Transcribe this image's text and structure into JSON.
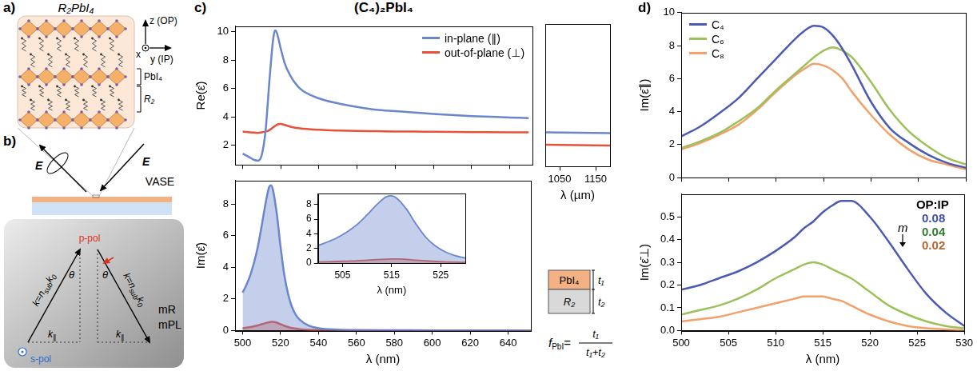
{
  "panels": {
    "a": "a)",
    "b": "b)",
    "c": "c)",
    "d": "d)"
  },
  "diagram": {
    "structure": {
      "title": "R₂PbI₄",
      "axis_z": "z (OP)",
      "axis_x": "x",
      "axis_y": "y (IP)",
      "inorganic_layer": "PbI₄",
      "organic_layer": "R₂"
    },
    "setup": {
      "field": "E",
      "method": "VASE",
      "p_pol": "p-pol",
      "s_pol": "s-pol",
      "wavevector": {
        "text": "k=n",
        "sub": "sub",
        "text2": "k",
        "sub2": "0"
      },
      "angle": "θ",
      "k_parallel": {
        "text": "k",
        "sub": "∥"
      },
      "micro_methods": [
        "mR",
        "mPL"
      ]
    },
    "layer_model": {
      "top": "PbI₄",
      "bottom": "R₂",
      "t_top": "t₁",
      "t_bottom": "t₂",
      "fraction": {
        "symbol": "f",
        "subscript": "PbI",
        "relation": "=",
        "numerator": "t₁",
        "denominator": "t₁+t₂"
      }
    }
  },
  "chart_data": [
    {
      "type": "line",
      "title": "(C₄)₂PbI₄",
      "x": [
        500,
        502,
        504,
        506,
        508,
        510,
        512,
        514,
        516,
        517,
        518,
        520,
        522,
        525,
        530,
        540,
        550,
        560,
        570,
        580,
        590,
        600,
        620,
        640,
        650
      ],
      "series": [
        {
          "name": "in-plane (∥)",
          "color": "#6a86cc",
          "values": [
            1.4,
            1.25,
            1.1,
            0.95,
            0.9,
            1.3,
            3.0,
            6.5,
            9.5,
            10.1,
            9.9,
            8.8,
            7.8,
            6.9,
            6.0,
            5.3,
            4.95,
            4.7,
            4.5,
            4.4,
            4.3,
            4.2,
            4.05,
            3.95,
            3.9
          ]
        },
        {
          "name": "out-of-plane (⊥)",
          "color": "#e8503a",
          "values": [
            2.95,
            2.93,
            2.9,
            2.88,
            2.86,
            2.9,
            2.95,
            3.05,
            3.25,
            3.35,
            3.45,
            3.5,
            3.42,
            3.3,
            3.18,
            3.08,
            3.03,
            3.0,
            2.98,
            2.96,
            2.95,
            2.94,
            2.92,
            2.9,
            2.9
          ]
        }
      ],
      "xlim": [
        496,
        652
      ],
      "ylim": [
        0.6,
        10.4
      ],
      "xticks": [
        500,
        520,
        540,
        560,
        580,
        600,
        620,
        640
      ],
      "yticks": [
        2,
        4,
        6,
        8,
        10
      ],
      "y_label": "Re(ε̄)",
      "tick_labels": "y",
      "grid": false,
      "legend": "top-right"
    },
    {
      "type": "line",
      "x": [
        1010,
        1190
      ],
      "series": [
        {
          "color": "#6a86cc",
          "values": [
            2.95,
            2.9
          ]
        },
        {
          "color": "#e8503a",
          "values": [
            2.1,
            2.05
          ]
        }
      ],
      "xlim": [
        1010,
        1190
      ],
      "ylim": [
        0.6,
        10.4
      ],
      "xticks": [
        1050,
        1150
      ],
      "x_label": "λ (µm)",
      "tick_labels": "x",
      "grid": false
    },
    {
      "type": "line",
      "x": [
        500,
        502,
        504,
        506,
        508,
        510,
        512,
        514,
        515,
        516,
        518,
        520,
        522,
        524,
        526,
        528,
        530,
        535,
        540,
        550,
        560,
        580,
        600,
        625,
        652
      ],
      "series": [
        {
          "color": "#6a86cc",
          "values": [
            2.4,
            2.9,
            3.5,
            4.3,
            5.3,
            6.6,
            8.0,
            9.1,
            9.2,
            8.9,
            7.4,
            5.3,
            3.5,
            2.3,
            1.5,
            1.0,
            0.7,
            0.3,
            0.15,
            0.06,
            0.03,
            0.02,
            0.01,
            0.01,
            0
          ]
        },
        {
          "color": "#e8503a",
          "values": [
            0.15,
            0.18,
            0.22,
            0.27,
            0.32,
            0.4,
            0.47,
            0.53,
            0.55,
            0.55,
            0.5,
            0.4,
            0.3,
            0.22,
            0.16,
            0.12,
            0.09,
            0.05,
            0.03,
            0.01,
            0.01,
            0,
            0,
            0,
            0
          ]
        }
      ],
      "xlim": [
        496,
        652
      ],
      "ylim": [
        0,
        9.5
      ],
      "xticks": [
        500,
        520,
        540,
        560,
        580,
        600,
        620,
        640
      ],
      "yticks": [
        0,
        2,
        4,
        6,
        8
      ],
      "x_label": "λ (nm)",
      "y_label": "Im(ε̄)",
      "grid": false
    },
    {
      "type": "line",
      "x": [
        500,
        502,
        504,
        506,
        508,
        510,
        512,
        514,
        515,
        516,
        518,
        520,
        522,
        524,
        526,
        528,
        530
      ],
      "series": [
        {
          "color": "#6a86cc",
          "values": [
            2.4,
            2.9,
            3.5,
            4.3,
            5.3,
            6.6,
            8.0,
            9.1,
            9.2,
            8.9,
            7.4,
            5.3,
            3.5,
            2.3,
            1.5,
            1.0,
            0.7
          ]
        },
        {
          "color": "#e8503a",
          "values": [
            0.15,
            0.18,
            0.22,
            0.27,
            0.32,
            0.4,
            0.47,
            0.53,
            0.55,
            0.55,
            0.5,
            0.4,
            0.3,
            0.22,
            0.16,
            0.12,
            0.09
          ]
        }
      ],
      "xlim": [
        500,
        530
      ],
      "ylim": [
        0,
        9.5
      ],
      "xticks": [
        505,
        515,
        525
      ],
      "yticks": [
        0,
        2,
        4,
        6,
        8
      ],
      "x_label": "λ (nm)",
      "grid": false
    },
    {
      "type": "line",
      "x": [
        500,
        502,
        504,
        506,
        508,
        510,
        512,
        513,
        514,
        515,
        516,
        517,
        518,
        520,
        522,
        524,
        526,
        528,
        530
      ],
      "series": [
        {
          "name": "C₄",
          "color": "#4b5bb5",
          "values": [
            2.5,
            3.1,
            3.9,
            4.8,
            6.0,
            7.2,
            8.4,
            8.9,
            9.2,
            9.1,
            8.6,
            7.8,
            6.8,
            4.6,
            3.0,
            2.1,
            1.4,
            0.9,
            0.6
          ]
        },
        {
          "name": "C₆",
          "color": "#9cc05a",
          "values": [
            1.8,
            2.2,
            2.7,
            3.4,
            4.2,
            5.3,
            6.3,
            6.8,
            7.3,
            7.7,
            7.9,
            7.7,
            7.3,
            5.8,
            4.1,
            2.8,
            1.9,
            1.2,
            0.8
          ]
        },
        {
          "name": "C₈",
          "color": "#f3a06b",
          "values": [
            1.7,
            2.1,
            2.6,
            3.2,
            4.1,
            5.2,
            6.2,
            6.6,
            6.9,
            6.8,
            6.5,
            6.0,
            5.2,
            3.8,
            2.6,
            1.7,
            1.1,
            0.8,
            0.5
          ]
        }
      ],
      "xlim": [
        500,
        530
      ],
      "ylim": [
        0,
        10
      ],
      "xticks": [
        500,
        505,
        510,
        515,
        520,
        525,
        530
      ],
      "yticks": [
        0,
        2,
        4,
        6,
        8,
        10
      ],
      "y_label": "Im(ε̄∥)",
      "tick_labels": "y",
      "grid": false,
      "legend": "top-left"
    },
    {
      "type": "line",
      "x": [
        500,
        502,
        504,
        506,
        508,
        510,
        512,
        513,
        514,
        515,
        516,
        517,
        518,
        520,
        522,
        524,
        526,
        528,
        530
      ],
      "series": [
        {
          "color": "#4b5bb5",
          "values": [
            0.18,
            0.2,
            0.23,
            0.26,
            0.3,
            0.35,
            0.41,
            0.45,
            0.48,
            0.52,
            0.55,
            0.57,
            0.57,
            0.5,
            0.39,
            0.27,
            0.16,
            0.08,
            0.02
          ]
        },
        {
          "color": "#9cc05a",
          "values": [
            0.07,
            0.09,
            0.11,
            0.14,
            0.18,
            0.23,
            0.27,
            0.29,
            0.3,
            0.29,
            0.27,
            0.25,
            0.23,
            0.17,
            0.11,
            0.07,
            0.04,
            0.02,
            0.01
          ]
        },
        {
          "color": "#f3a06b",
          "values": [
            0.04,
            0.05,
            0.06,
            0.08,
            0.1,
            0.12,
            0.14,
            0.15,
            0.15,
            0.15,
            0.14,
            0.13,
            0.11,
            0.07,
            0.04,
            0.02,
            0.01,
            0.005,
            0
          ]
        }
      ],
      "xlim": [
        500,
        530
      ],
      "ylim": [
        0,
        0.6
      ],
      "xticks": [
        500,
        505,
        510,
        515,
        520,
        525,
        530
      ],
      "yticks": [
        {
          "value": 0,
          "label": "0.0"
        },
        0.1,
        0.2,
        0.3,
        0.4,
        0.5
      ],
      "x_label": "λ (nm)",
      "y_label": "Im(ε̄⊥)",
      "grid": false,
      "annotations": [
        {
          "text": "OP:IP"
        },
        {
          "text": "0.08",
          "color": "#3d4ea8"
        },
        {
          "text": "0.04",
          "color": "#2e7d32"
        },
        {
          "text": "0.02",
          "color": "#b5652e"
        },
        {
          "text": "m"
        }
      ]
    }
  ]
}
